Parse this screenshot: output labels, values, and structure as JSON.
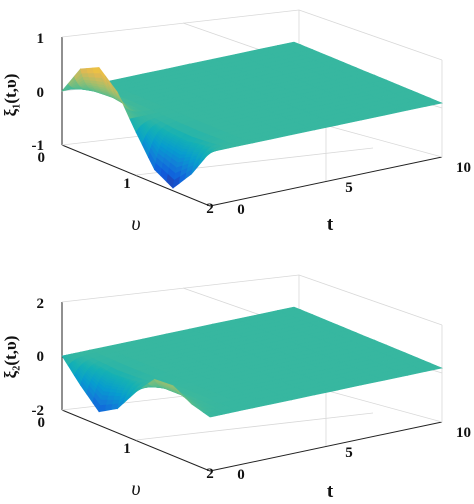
{
  "chart_data": [
    {
      "type": "surface",
      "zlabel": "ξ₁(t,υ)",
      "xlabel": "t",
      "ylabel": "υ",
      "x_ticks": [
        "0",
        "5",
        "10"
      ],
      "y_ticks": [
        "0",
        "1",
        "2"
      ],
      "z_ticks": [
        "1",
        "0",
        "-1"
      ],
      "xlim": [
        0,
        10
      ],
      "ylim": [
        0,
        2
      ],
      "zlim": [
        -1,
        1
      ],
      "grid": true,
      "colormap": "parula",
      "surface_profile": {
        "v": [
          0,
          0.25,
          0.5,
          0.75,
          1.0,
          1.25,
          1.5,
          1.75,
          2.0
        ],
        "z_at_t0": [
          0,
          0.55,
          0.72,
          0.4,
          -0.2,
          -0.75,
          -0.95,
          -0.55,
          0
        ],
        "z_for_t_gt_0": 0
      }
    },
    {
      "type": "surface",
      "zlabel": "ξ₂(t,υ)",
      "xlabel": "t",
      "ylabel": "υ",
      "x_ticks": [
        "0",
        "5",
        "10"
      ],
      "y_ticks": [
        "0",
        "1",
        "2"
      ],
      "z_ticks": [
        "2",
        "0",
        "-2"
      ],
      "xlim": [
        0,
        10
      ],
      "ylim": [
        0,
        2
      ],
      "zlim": [
        -2,
        2
      ],
      "grid": true,
      "colormap": "parula",
      "surface_profile": {
        "v": [
          0,
          0.25,
          0.5,
          0.75,
          1.0,
          1.25,
          1.5,
          1.75,
          2.0
        ],
        "z_at_t0": [
          0,
          -0.8,
          -1.5,
          -1.1,
          -0.2,
          0.55,
          0.6,
          0.2,
          0
        ],
        "z_for_t_gt_0": 0
      }
    }
  ]
}
